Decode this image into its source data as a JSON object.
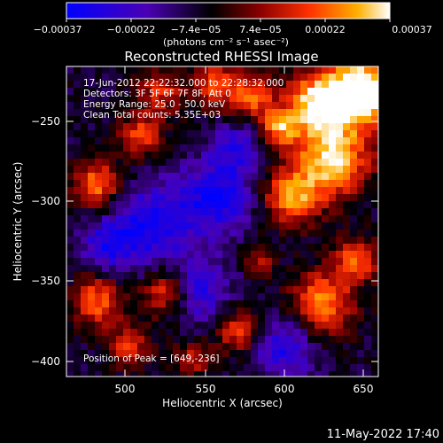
{
  "colorbar": {
    "tick_labels": [
      "−0.00037",
      "−0.00022",
      "−7.4e−05",
      "7.4e−05",
      "0.00022",
      "0.00037"
    ],
    "units_text": "(photons cm⁻² s⁻¹ asec⁻²)",
    "min": -0.00037,
    "max": 0.00037,
    "colors": [
      "#0000ff",
      "#4b00b4",
      "#000000",
      "#8b0000",
      "#ff3000",
      "#ffb000",
      "#ffffff"
    ]
  },
  "plot": {
    "title": "Reconstructed RHESSI Image",
    "xlabel": "Heliocentric X (arcsec)",
    "ylabel": "Heliocentric Y (arcsec)",
    "x_ticks": [
      "500",
      "550",
      "600",
      "650"
    ],
    "y_ticks": [
      "−250",
      "−300",
      "−350",
      "−400"
    ],
    "annotations": [
      "17-Jun-2012 22:22:32.000 to 22:28:32.000",
      "Detectors: 3F 5F 6F 7F 8F, Att 0",
      "Energy Range: 25.0 - 50.0 keV",
      "Clean     Total counts: 5.35E+03"
    ],
    "peak_text": "Position of Peak = [649,-236]"
  },
  "footer": {
    "timestamp": "11-May-2022 17:40"
  },
  "chart_data": {
    "type": "heatmap",
    "title": "Reconstructed RHESSI Image",
    "xlabel": "Heliocentric X (arcsec)",
    "ylabel": "Heliocentric Y (arcsec)",
    "xlim": [
      466,
      654
    ],
    "ylim": [
      -412,
      -222
    ],
    "x_ticks": [
      500,
      550,
      600,
      650
    ],
    "y_ticks": [
      -250,
      -300,
      -350,
      -400
    ],
    "colorbar_range": [
      -0.00037,
      0.00037
    ],
    "colorbar_ticks": [
      -0.00037,
      -0.00022,
      -7.4e-05,
      7.4e-05,
      0.00022,
      0.00037
    ],
    "peak_position": [
      649,
      -236
    ],
    "grid": false
  }
}
